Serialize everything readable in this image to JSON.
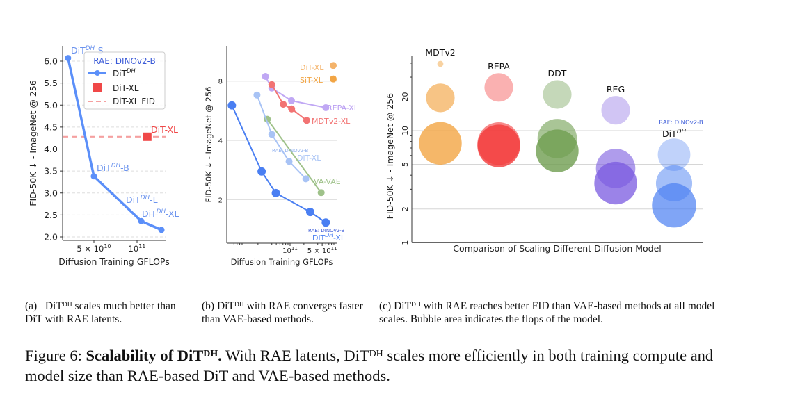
{
  "chart_data": [
    {
      "type": "line",
      "panel": "(a)",
      "xlabel": "Diffusion Training GFLOPs",
      "ylabel": "FID-50K ↓ - ImageNet @ 256",
      "x_scale": "log",
      "xlim": [
        28000000000.0,
        160000000000.0
      ],
      "ylim": [
        1.98,
        6.3
      ],
      "x_ticks": [
        {
          "value": 50000000000.0,
          "base": "5 × 10",
          "exp": "10"
        },
        {
          "value": 100000000000.0,
          "base": "10",
          "exp": "11"
        }
      ],
      "y_ticks": [
        "2.0",
        "2.5",
        "3.0",
        "3.5",
        "4.0",
        "4.5",
        "5.0",
        "5.5",
        "6.0"
      ],
      "grid": "horizontal dashed",
      "legend": {
        "placement": "top-right",
        "title": "RAE: DINOv2-B",
        "entries": [
          {
            "label": "DiT",
            "sup": "DH",
            "marker": "line-circle",
            "color": "#5b8ff9"
          },
          {
            "label": "DiT-XL",
            "sup": "",
            "marker": "square",
            "color": "#f04848"
          },
          {
            "label": "DiT-XL FID",
            "sup": "",
            "marker": "dashed-line",
            "color": "#f5a0a0"
          }
        ]
      },
      "series": [
        {
          "name": "DiT^DH",
          "color": "#5b8ff9",
          "points": [
            {
              "x": 33000000000.0,
              "y": 6.07,
              "label": "DiT",
              "sup": "DH",
              "suffix": "-S"
            },
            {
              "x": 50000000000.0,
              "y": 3.38,
              "label": "DiT",
              "sup": "DH",
              "suffix": "-B"
            },
            {
              "x": 107000000000.0,
              "y": 2.36,
              "label": "DiT",
              "sup": "DH",
              "suffix": "-L"
            },
            {
              "x": 148000000000.0,
              "y": 2.16,
              "label": "DiT",
              "sup": "DH",
              "suffix": "-XL"
            }
          ]
        },
        {
          "name": "DiT-XL",
          "color": "#f04848",
          "points": [
            {
              "x": 118000000000.0,
              "y": 4.28,
              "label": "DiT-XL"
            }
          ]
        }
      ],
      "hline": {
        "name": "DiT-XL FID",
        "y": 4.28,
        "color": "#f5a0a0"
      }
    },
    {
      "type": "line",
      "panel": "(b)",
      "xlabel": "Diffusion Training GFLOPs",
      "ylabel": "FID-50K ↓ - ImageNet @ 256",
      "x_scale": "log",
      "y_scale": "log",
      "xlim": [
        4200000000.0,
        1070000000000.0
      ],
      "ylim": [
        1.2,
        11.9
      ],
      "x_ticks": [
        {
          "value": 100000000000.0,
          "base": "10",
          "exp": "11"
        },
        {
          "value": 500000000000.0,
          "base": "5 × 10",
          "exp": "11"
        }
      ],
      "y_ticks": [
        {
          "value": 2,
          "label": "2"
        },
        {
          "value": 4,
          "label": "4"
        },
        {
          "value": 8,
          "label": "8"
        }
      ],
      "grid": "horizontal",
      "series": [
        {
          "name": "DiT-XL",
          "color": "#f4b36a",
          "points": [
            {
              "x": 870000000000.0,
              "y": 9.6
            }
          ]
        },
        {
          "name": "SiT-XL",
          "color": "#f2a544",
          "points": [
            {
              "x": 870000000000.0,
              "y": 8.2
            }
          ]
        },
        {
          "name": "REPA-XL",
          "color": "#c0a8f4",
          "points": [
            {
              "x": 29000000000.0,
              "y": 8.45
            },
            {
              "x": 40000000000.0,
              "y": 7.37
            },
            {
              "x": 107000000000.0,
              "y": 6.36
            },
            {
              "x": 600000000000.0,
              "y": 5.86
            }
          ]
        },
        {
          "name": "MDTv2-XL",
          "color": "#f27373",
          "points": [
            {
              "x": 40000000000.0,
              "y": 7.68
            },
            {
              "x": 71000000000.0,
              "y": 6.1
            },
            {
              "x": 108000000000.0,
              "y": 5.78
            },
            {
              "x": 230000000000.0,
              "y": 5.05
            }
          ]
        },
        {
          "name": "VA-VAE",
          "color": "#9fc28a",
          "points": [
            {
              "x": 32000000000.0,
              "y": 5.12
            },
            {
              "x": 475000000000.0,
              "y": 2.17
            }
          ]
        },
        {
          "name": "DiT-XL",
          "note": "RAE: DINOv2-B",
          "color": "#a8c3f5",
          "points": [
            {
              "x": 19000000000.0,
              "y": 6.8
            },
            {
              "x": 40000000000.0,
              "y": 4.29
            },
            {
              "x": 95000000000.0,
              "y": 3.13
            },
            {
              "x": 220000000000.0,
              "y": 2.55
            }
          ]
        },
        {
          "name": "DiT^DH-XL",
          "note": "RAE: DINOv2-B",
          "color": "#4a7ff2",
          "points": [
            {
              "x": 5400000000.0,
              "y": 6.02
            },
            {
              "x": 24000000000.0,
              "y": 2.78
            },
            {
              "x": 49000000000.0,
              "y": 2.16
            },
            {
              "x": 275000000000.0,
              "y": 1.73
            },
            {
              "x": 600000000000.0,
              "y": 1.53
            }
          ]
        }
      ],
      "labels": {
        "dit_xl": "DiT-XL",
        "sit_xl": "SiT-XL",
        "repa": "REPA-XL",
        "mdt": "MDTv2-XL",
        "rae_note": "RAE: DINOv2-B",
        "rae_ditxl": "DiT-XL",
        "vavae": "VA-VAE",
        "rae_note2": "RAE: DINOv2-B",
        "dh_base": "DiT",
        "dh_sup": "DH",
        "dh_suffix": "-XL"
      }
    },
    {
      "type": "bubble",
      "panel": "(c)",
      "xlabel": "Comparison of Scaling Different Diffusion Model",
      "ylabel": "FID-50K ↓ - ImageNet @ 256",
      "y_scale": "log",
      "ylim": [
        1,
        50
      ],
      "y_ticks": [
        "1",
        "2",
        "5",
        "10",
        "20"
      ],
      "y_tick_values": [
        1,
        2,
        5,
        10,
        20
      ],
      "grid": "horizontal",
      "bubble_size_meaning": "Bubble area indicates the flops of the model",
      "groups": [
        {
          "name": "MDTv2",
          "color": "#f2a544",
          "bubbles": [
            {
              "y": 39.4,
              "size": 0.02,
              "opacity": 0.5
            },
            {
              "y": 19.6,
              "size": 0.45,
              "opacity": 0.65
            },
            {
              "y": 7.7,
              "size": 1.0,
              "opacity": 0.8
            }
          ]
        },
        {
          "name": "REPA",
          "color": "#f23b3b",
          "bubbles": [
            {
              "y": 24.3,
              "size": 0.45,
              "opacity": 0.4
            },
            {
              "y": 7.66,
              "size": 1.0,
              "opacity": 0.6
            },
            {
              "y": 7.3,
              "size": 1.0,
              "opacity": 0.8
            }
          ]
        },
        {
          "name": "DDT",
          "color": "#6f9e50",
          "bubbles": [
            {
              "y": 21,
              "size": 0.45,
              "opacity": 0.4
            },
            {
              "y": 8.5,
              "size": 0.85,
              "opacity": 0.6
            },
            {
              "y": 6.6,
              "size": 1.0,
              "opacity": 0.8
            }
          ]
        },
        {
          "name": "REG",
          "color": "#7a5ae0",
          "bubbles": [
            {
              "y": 15.2,
              "size": 0.45,
              "opacity": 0.35
            },
            {
              "y": 4.6,
              "size": 0.85,
              "opacity": 0.6
            },
            {
              "y": 3.4,
              "size": 1.0,
              "opacity": 0.75
            }
          ]
        },
        {
          "name": "DiT",
          "sup": "DH",
          "note": "RAE: DINOv2-B",
          "color": "#4a7ff2",
          "bubbles": [
            {
              "y": 6.1,
              "size": 0.58,
              "opacity": 0.35
            },
            {
              "y": 3.38,
              "size": 0.72,
              "opacity": 0.5
            },
            {
              "y": 2.15,
              "size": 1.07,
              "opacity": 0.7
            }
          ]
        }
      ]
    }
  ],
  "captions": {
    "a": {
      "prefix": "(a)",
      "pre": "DiT",
      "sup": "DH",
      "text": " scales much better than DiT with RAE latents."
    },
    "b": {
      "prefix": "(b)",
      "pre": "DiT",
      "sup": "DH",
      "text": " with RAE converges faster than VAE-based methods."
    },
    "c": {
      "prefix": "(c)",
      "pre": "DiT",
      "sup": "DH",
      "text": " with RAE reaches better FID than VAE-based methods at all model scales. Bubble area indicates the flops of the model."
    },
    "figure": {
      "label": "Figure 6:",
      "bold": "Scalability of DiT",
      "bold_sup": "DH",
      "bold_end": ".",
      "text1": " With RAE latents, DiT",
      "sup2": "DH",
      "text2": " scales more efficiently in both training compute and model size than RAE-based DiT and VAE-based methods."
    }
  }
}
